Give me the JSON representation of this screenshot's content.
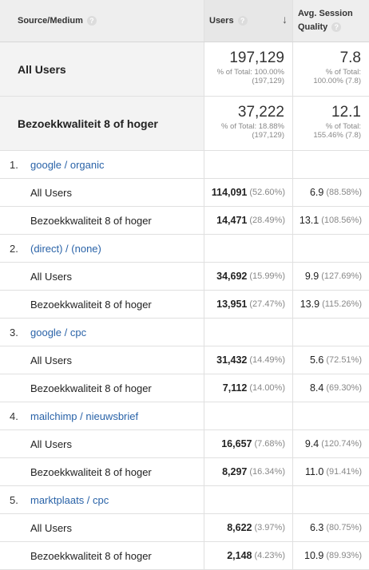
{
  "header": {
    "col1": "Source/Medium",
    "col2": "Users",
    "col3": "Avg. Session Quality",
    "help_glyph": "?",
    "sort_icon": "arrow-down-icon"
  },
  "summary": [
    {
      "label": "All Users",
      "users": "197,129",
      "users_sub": "% of Total: 100.00% (197,129)",
      "quality": "7.8",
      "quality_sub": "% of Total: 100.00% (7.8)"
    },
    {
      "label": "Bezoekkwaliteit 8 of hoger",
      "users": "37,222",
      "users_sub": "% of Total: 18.88% (197,129)",
      "quality": "12.1",
      "quality_sub": "% of Total: 155.46% (7.8)"
    }
  ],
  "groups": [
    {
      "num": "1.",
      "name": "google / organic",
      "rows": [
        {
          "label": "All Users",
          "users": "114,091",
          "users_pct": "(52.60%)",
          "quality": "6.9",
          "quality_pct": "(88.58%)"
        },
        {
          "label": "Bezoekkwaliteit 8 of hoger",
          "users": "14,471",
          "users_pct": "(28.49%)",
          "quality": "13.1",
          "quality_pct": "(108.56%)"
        }
      ]
    },
    {
      "num": "2.",
      "name": "(direct) / (none)",
      "rows": [
        {
          "label": "All Users",
          "users": "34,692",
          "users_pct": "(15.99%)",
          "quality": "9.9",
          "quality_pct": "(127.69%)"
        },
        {
          "label": "Bezoekkwaliteit 8 of hoger",
          "users": "13,951",
          "users_pct": "(27.47%)",
          "quality": "13.9",
          "quality_pct": "(115.26%)"
        }
      ]
    },
    {
      "num": "3.",
      "name": "google / cpc",
      "rows": [
        {
          "label": "All Users",
          "users": "31,432",
          "users_pct": "(14.49%)",
          "quality": "5.6",
          "quality_pct": "(72.51%)"
        },
        {
          "label": "Bezoekkwaliteit 8 of hoger",
          "users": "7,112",
          "users_pct": "(14.00%)",
          "quality": "8.4",
          "quality_pct": "(69.30%)"
        }
      ]
    },
    {
      "num": "4.",
      "name": "mailchimp / nieuwsbrief",
      "rows": [
        {
          "label": "All Users",
          "users": "16,657",
          "users_pct": "(7.68%)",
          "quality": "9.4",
          "quality_pct": "(120.74%)"
        },
        {
          "label": "Bezoekkwaliteit 8 of hoger",
          "users": "8,297",
          "users_pct": "(16.34%)",
          "quality": "11.0",
          "quality_pct": "(91.41%)"
        }
      ]
    },
    {
      "num": "5.",
      "name": "marktplaats / cpc",
      "rows": [
        {
          "label": "All Users",
          "users": "8,622",
          "users_pct": "(3.97%)",
          "quality": "6.3",
          "quality_pct": "(80.75%)"
        },
        {
          "label": "Bezoekkwaliteit 8 of hoger",
          "users": "2,148",
          "users_pct": "(4.23%)",
          "quality": "10.9",
          "quality_pct": "(89.93%)"
        }
      ]
    }
  ]
}
